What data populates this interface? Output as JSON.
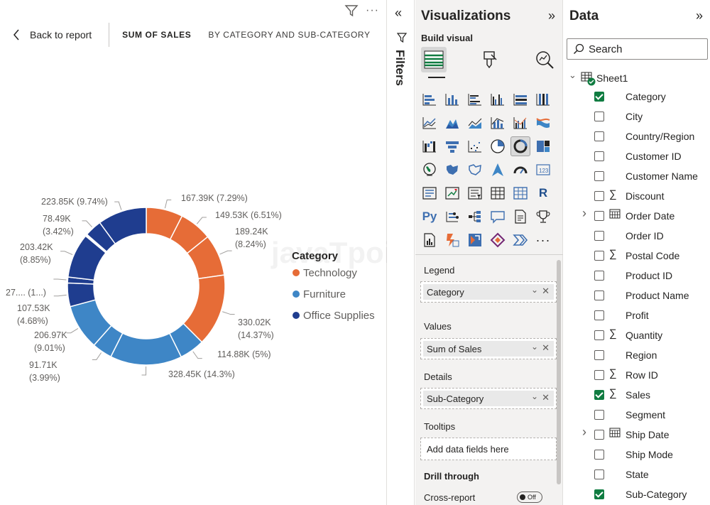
{
  "report": {
    "back_label": "Back to report",
    "crumb_measure": "SUM OF SALES",
    "crumb_by": "BY CATEGORY AND SUB-CATEGORY",
    "watermark": "javaTpoint"
  },
  "chart_data": {
    "type": "donut",
    "legend_title": "Category",
    "legend": [
      {
        "name": "Technology",
        "color": "#e66c37"
      },
      {
        "name": "Furniture",
        "color": "#3e86c6"
      },
      {
        "name": "Office Supplies",
        "color": "#1f3d8f"
      }
    ],
    "slices": [
      {
        "category": "Technology",
        "value": 167.39,
        "label": "167.39K (7.29%)",
        "color": "#e66c37"
      },
      {
        "category": "Technology",
        "value": 149.53,
        "label": "149.53K (6.51%)",
        "color": "#e66c37"
      },
      {
        "category": "Technology",
        "value": 189.24,
        "label": "189.24K (8.24%)",
        "color": "#e66c37"
      },
      {
        "category": "Technology",
        "value": 330.02,
        "label": "330.02K (14.37%)",
        "color": "#e66c37"
      },
      {
        "category": "Furniture",
        "value": 114.88,
        "label": "114.88K (5%)",
        "color": "#3e86c6"
      },
      {
        "category": "Furniture",
        "value": 328.45,
        "label": "328.45K (14.3%)",
        "color": "#3e86c6"
      },
      {
        "category": "Furniture",
        "value": 91.71,
        "label": "91.71K (3.99%)",
        "color": "#3e86c6"
      },
      {
        "category": "Furniture",
        "value": 206.97,
        "label": "206.97K (9.01%)",
        "color": "#3e86c6"
      },
      {
        "category": "Office Supplies",
        "value": 107.53,
        "label": "107.53K (4.68%)",
        "color": "#1f3d8f"
      },
      {
        "category": "Office Supplies",
        "value": 27,
        "label": "27.... (1...)",
        "color": "#1f3d8f"
      },
      {
        "category": "Office Supplies",
        "value": 203.42,
        "label": "203.42K (8.85%)",
        "color": "#1f3d8f"
      },
      {
        "category": "Office Supplies",
        "value": 3.1,
        "label": "",
        "color": "#1f3d8f"
      },
      {
        "category": "Office Supplies",
        "value": 3.4,
        "label": "",
        "color": "#1f3d8f"
      },
      {
        "category": "Office Supplies",
        "value": 3.0,
        "label": "",
        "color": "#1f3d8f"
      },
      {
        "category": "Office Supplies",
        "value": 78.49,
        "label": "78.49K (3.42%)",
        "color": "#1f3d8f"
      },
      {
        "category": "Office Supplies",
        "value": 223.85,
        "label": "223.85K (9.74%)",
        "color": "#1f3d8f"
      }
    ]
  },
  "filters": {
    "label": "Filters"
  },
  "viz": {
    "title": "Visualizations",
    "build_label": "Build visual",
    "more_label": "···",
    "r_label": "R",
    "py_label": "Py",
    "legend_label": "Legend",
    "legend_field": "Category",
    "values_label": "Values",
    "values_field": "Sum of Sales",
    "details_label": "Details",
    "details_field": "Sub-Category",
    "tooltips_label": "Tooltips",
    "tooltips_placeholder": "Add data fields here",
    "drill_label": "Drill through",
    "cross_label": "Cross-report",
    "toggle_label": "Off"
  },
  "data_pane": {
    "title": "Data",
    "search_placeholder": "Search",
    "table_name": "Sheet1",
    "fields": [
      {
        "name": "Category",
        "checked": true,
        "sigma": false,
        "date": false
      },
      {
        "name": "City",
        "checked": false,
        "sigma": false,
        "date": false
      },
      {
        "name": "Country/Region",
        "checked": false,
        "sigma": false,
        "date": false
      },
      {
        "name": "Customer ID",
        "checked": false,
        "sigma": false,
        "date": false
      },
      {
        "name": "Customer Name",
        "checked": false,
        "sigma": false,
        "date": false
      },
      {
        "name": "Discount",
        "checked": false,
        "sigma": true,
        "date": false
      },
      {
        "name": "Order Date",
        "checked": false,
        "sigma": false,
        "date": true
      },
      {
        "name": "Order ID",
        "checked": false,
        "sigma": false,
        "date": false
      },
      {
        "name": "Postal Code",
        "checked": false,
        "sigma": true,
        "date": false
      },
      {
        "name": "Product ID",
        "checked": false,
        "sigma": false,
        "date": false
      },
      {
        "name": "Product Name",
        "checked": false,
        "sigma": false,
        "date": false
      },
      {
        "name": "Profit",
        "checked": false,
        "sigma": false,
        "date": false
      },
      {
        "name": "Quantity",
        "checked": false,
        "sigma": true,
        "date": false
      },
      {
        "name": "Region",
        "checked": false,
        "sigma": false,
        "date": false
      },
      {
        "name": "Row ID",
        "checked": false,
        "sigma": true,
        "date": false
      },
      {
        "name": "Sales",
        "checked": true,
        "sigma": true,
        "date": false
      },
      {
        "name": "Segment",
        "checked": false,
        "sigma": false,
        "date": false
      },
      {
        "name": "Ship Date",
        "checked": false,
        "sigma": false,
        "date": true
      },
      {
        "name": "Ship Mode",
        "checked": false,
        "sigma": false,
        "date": false
      },
      {
        "name": "State",
        "checked": false,
        "sigma": false,
        "date": false
      },
      {
        "name": "Sub-Category",
        "checked": true,
        "sigma": false,
        "date": false
      }
    ]
  }
}
